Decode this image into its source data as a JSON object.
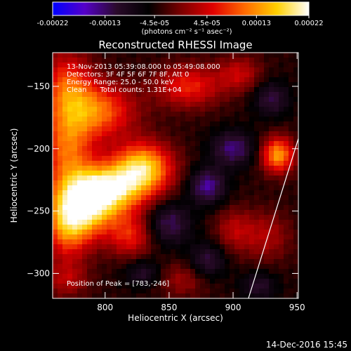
{
  "colorbar": {
    "tick_labels": [
      "-0.00022",
      "-0.00013",
      "-4.5e-05",
      "4.5e-05",
      "0.00013",
      "0.00022"
    ],
    "tick_values": [
      -0.00022,
      -0.00013,
      -4.5e-05,
      4.5e-05,
      0.00013,
      0.00022
    ],
    "range": [
      -0.00022,
      0.00022
    ],
    "units_label": "(photons cm⁻² s⁻¹ asec⁻²)",
    "colors": [
      "#0000ff",
      "#5500c8",
      "#2a0a2a",
      "#000000",
      "#7a0000",
      "#e00000",
      "#ff6a00",
      "#ffd000",
      "#ffffff"
    ]
  },
  "chart_data": {
    "type": "heatmap",
    "title": "Reconstructed RHESSI Image",
    "xlabel": "Heliocentric X (arcsec)",
    "ylabel": "Heliocentric Y (arcsec)",
    "xlim": [
      759,
      951
    ],
    "ylim": [
      -320,
      -123
    ],
    "xticks": [
      800,
      850,
      900,
      950
    ],
    "yticks": [
      -300,
      -250,
      -200,
      -150
    ],
    "annotations": [
      "13-Nov-2013 05:39:08.000 to 05:49:08.000",
      "Detectors: 3F 4F 5F 6F 7F 8F, Att 0",
      "Energy Range: 25.0 - 50.0 keV",
      "Clean      Total counts: 1.31E+04"
    ],
    "peak_label": "Position of Peak = [783,-246]",
    "peak": [
      783,
      -246
    ],
    "limb_line": {
      "start": [
        912,
        -320
      ],
      "end": [
        951,
        -192
      ]
    },
    "blobs": [
      {
        "x": 783,
        "y": -246,
        "value": 1.0,
        "sx": 18,
        "sy": 18
      },
      {
        "x": 805,
        "y": -232,
        "value": 0.85,
        "sx": 20,
        "sy": 14
      },
      {
        "x": 830,
        "y": -215,
        "value": 0.9,
        "sx": 16,
        "sy": 14
      },
      {
        "x": 770,
        "y": -200,
        "value": 0.6,
        "sx": 14,
        "sy": 22
      },
      {
        "x": 770,
        "y": -150,
        "value": 0.55,
        "sx": 14,
        "sy": 20
      },
      {
        "x": 795,
        "y": -170,
        "value": 0.65,
        "sx": 20,
        "sy": 16
      },
      {
        "x": 770,
        "y": -265,
        "value": 0.5,
        "sx": 12,
        "sy": 18
      },
      {
        "x": 820,
        "y": -270,
        "value": 0.45,
        "sx": 12,
        "sy": 12
      },
      {
        "x": 865,
        "y": -150,
        "value": 0.5,
        "sx": 18,
        "sy": 12
      },
      {
        "x": 905,
        "y": -140,
        "value": 0.35,
        "sx": 12,
        "sy": 10
      },
      {
        "x": 935,
        "y": -205,
        "value": 0.8,
        "sx": 9,
        "sy": 10
      },
      {
        "x": 925,
        "y": -270,
        "value": 0.3,
        "sx": 14,
        "sy": 14
      },
      {
        "x": 900,
        "y": -265,
        "value": 0.28,
        "sx": 10,
        "sy": 12
      },
      {
        "x": 770,
        "y": -305,
        "value": 0.3,
        "sx": 12,
        "sy": 10
      },
      {
        "x": 860,
        "y": -305,
        "value": 0.25,
        "sx": 14,
        "sy": 10
      },
      {
        "x": 880,
        "y": -230,
        "value": -0.5,
        "sx": 10,
        "sy": 10
      },
      {
        "x": 900,
        "y": -200,
        "value": -0.45,
        "sx": 12,
        "sy": 10
      },
      {
        "x": 850,
        "y": -260,
        "value": -0.4,
        "sx": 12,
        "sy": 12
      },
      {
        "x": 880,
        "y": -290,
        "value": -0.35,
        "sx": 10,
        "sy": 10
      },
      {
        "x": 920,
        "y": -310,
        "value": -0.3,
        "sx": 10,
        "sy": 8
      },
      {
        "x": 930,
        "y": -160,
        "value": -0.35,
        "sx": 10,
        "sy": 10
      },
      {
        "x": 830,
        "y": -300,
        "value": -0.3,
        "sx": 10,
        "sy": 8
      }
    ]
  },
  "footer": {
    "timestamp": "14-Dec-2016 15:45"
  }
}
